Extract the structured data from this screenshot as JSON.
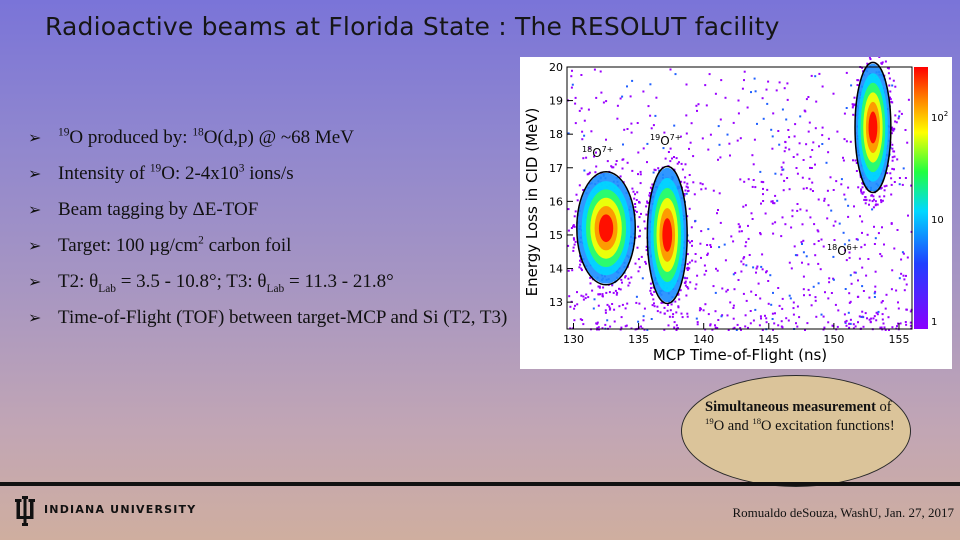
{
  "slide": {
    "title": "Radioactive beams at Florida State : The RESOLUT facility"
  },
  "bullets": [
    {
      "pre": "",
      "sup1": "19",
      "mid": "O produced by: ",
      "sup2": "18",
      "post": "O(d,p) @ ~68 MeV"
    },
    {
      "pre": "Intensity of ",
      "sup1": "19",
      "mid": "O: 2-4x10",
      "sup2": "3",
      "post": " ions/s"
    },
    {
      "text": "Beam tagging by ΔE-TOF"
    },
    {
      "pre": "Target: 100 µg/cm",
      "sup1": "2",
      "post": " carbon foil"
    },
    {
      "t2": "T2: θ",
      "sub1": "Lab",
      "mid": " = 3.5 - 10.8°; T3: θ",
      "sub2": "Lab",
      "post": " = 11.3 - 21.8°"
    },
    {
      "text": "Time-of-Flight (TOF) between target-MCP and Si (T2, T3)"
    }
  ],
  "bullet_marker": "➢",
  "chart_data": {
    "type": "heatmap",
    "xlabel": "MCP Time-of-Flight (ns)",
    "ylabel": "Energy Loss in CID (MeV)",
    "xlim": [
      129.5,
      156
    ],
    "ylim": [
      12.2,
      20
    ],
    "xticks": [
      "130",
      "135",
      "140",
      "145",
      "150",
      "155"
    ],
    "xtick_values": [
      130,
      135,
      140,
      145,
      150,
      155
    ],
    "yticks": [
      "13",
      "14",
      "15",
      "16",
      "17",
      "18",
      "19",
      "20"
    ],
    "ytick_values": [
      13,
      14,
      15,
      16,
      17,
      18,
      19,
      20
    ],
    "colorbar_ticks": [
      "1",
      "10",
      "10"
    ],
    "colorbar_exponents": [
      "",
      "",
      "2"
    ],
    "colorbar_scale": "log",
    "clusters": [
      {
        "label_sup": "18",
        "label": "O",
        "label_charge": "7+",
        "tof_center": 132.5,
        "de_center": 15.2,
        "tof_halfwidth": 2.2,
        "de_halfwidth": 1.65
      },
      {
        "label_sup": "19",
        "label": "O",
        "label_charge": "7+",
        "tof_center": 137.2,
        "de_center": 15.0,
        "tof_halfwidth": 1.5,
        "de_halfwidth": 2.0
      },
      {
        "label_sup": "18",
        "label": "O",
        "label_charge": "6+",
        "tof_center": 153.0,
        "de_center": 18.2,
        "tof_halfwidth": 1.35,
        "de_halfwidth": 1.9
      }
    ],
    "colors": {
      "high": "#ff0000",
      "mid": "#00d0ff",
      "low": "#a000ff",
      "contour": "#000000"
    }
  },
  "callout": {
    "bold1": "Simultaneous measurement",
    "text1": " of ",
    "sup1": "19",
    "text2": "O and ",
    "sup2": "18",
    "text3": "O excitation functions!"
  },
  "footer": {
    "university": "INDIANA UNIVERSITY",
    "credit": "Romualdo deSouza, WashU, Jan. 27, 2017"
  },
  "colors": {
    "accent_logo": "#111111",
    "callout_fill": "#dbc49a"
  }
}
